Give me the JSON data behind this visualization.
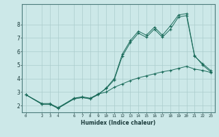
{
  "xlabel": "Humidex (Indice chaleur)",
  "bg_color": "#cce8e8",
  "grid_color": "#aacccc",
  "line_color": "#1a6b5a",
  "line1_x": [
    0,
    2,
    3,
    4,
    6,
    7,
    8,
    9,
    10,
    11,
    12,
    13,
    14,
    15,
    16,
    17,
    18,
    19,
    20,
    21,
    22,
    23
  ],
  "line1_y": [
    2.8,
    2.1,
    2.1,
    1.8,
    2.5,
    2.6,
    2.5,
    2.8,
    3.3,
    4.0,
    5.8,
    6.8,
    7.5,
    7.2,
    7.8,
    7.2,
    7.9,
    8.7,
    8.8,
    5.7,
    5.0,
    4.5
  ],
  "line2_x": [
    0,
    2,
    3,
    4,
    6,
    7,
    8,
    9,
    10,
    11,
    12,
    13,
    14,
    15,
    16,
    17,
    18,
    19,
    20,
    21,
    22,
    23
  ],
  "line2_y": [
    2.8,
    2.15,
    2.15,
    1.85,
    2.55,
    2.65,
    2.55,
    2.85,
    3.25,
    3.9,
    5.65,
    6.65,
    7.35,
    7.05,
    7.65,
    7.05,
    7.65,
    8.55,
    8.65,
    5.65,
    5.1,
    4.6
  ],
  "line3_x": [
    0,
    2,
    3,
    4,
    6,
    7,
    8,
    9,
    10,
    11,
    12,
    13,
    14,
    15,
    16,
    17,
    18,
    19,
    20,
    21,
    22,
    23
  ],
  "line3_y": [
    2.8,
    2.1,
    2.1,
    1.8,
    2.5,
    2.6,
    2.5,
    2.85,
    3.0,
    3.35,
    3.6,
    3.85,
    4.05,
    4.2,
    4.35,
    4.5,
    4.6,
    4.75,
    4.9,
    4.7,
    4.6,
    4.45
  ],
  "xlim": [
    -0.5,
    23.5
  ],
  "ylim": [
    1.5,
    9.5
  ],
  "xticks": [
    0,
    2,
    3,
    4,
    6,
    7,
    8,
    9,
    10,
    11,
    12,
    13,
    14,
    15,
    16,
    17,
    18,
    19,
    20,
    21,
    22,
    23
  ],
  "yticks": [
    2,
    3,
    4,
    5,
    6,
    7,
    8
  ]
}
